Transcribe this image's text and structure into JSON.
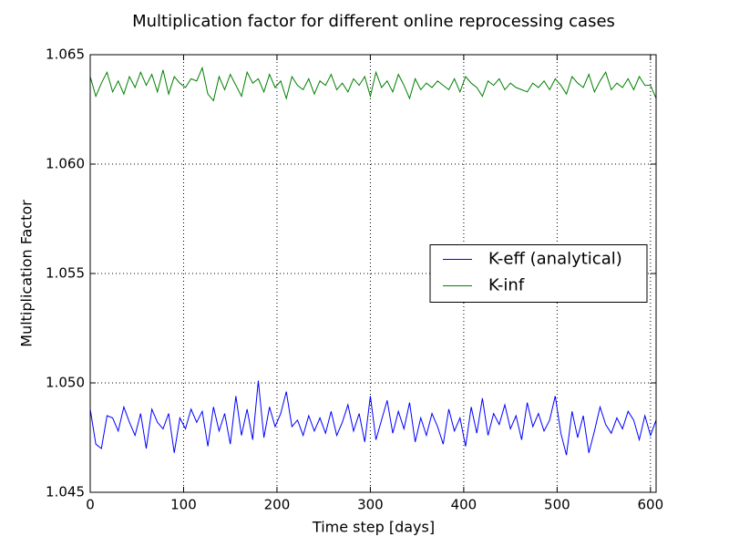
{
  "chart_data": {
    "type": "line",
    "title": "Multiplication factor for different online reprocessing cases",
    "xlabel": "Time step [days]",
    "ylabel": "Multiplication Factor",
    "x": [
      0,
      6,
      12,
      18,
      24,
      30,
      36,
      42,
      48,
      54,
      60,
      66,
      72,
      78,
      84,
      90,
      96,
      102,
      108,
      114,
      120,
      126,
      132,
      138,
      144,
      150,
      156,
      162,
      168,
      174,
      180,
      186,
      192,
      198,
      204,
      210,
      216,
      222,
      228,
      234,
      240,
      246,
      252,
      258,
      264,
      270,
      276,
      282,
      288,
      294,
      300,
      306,
      312,
      318,
      324,
      330,
      336,
      342,
      348,
      354,
      360,
      366,
      372,
      378,
      384,
      390,
      396,
      402,
      408,
      414,
      420,
      426,
      432,
      438,
      444,
      450,
      456,
      462,
      468,
      474,
      480,
      486,
      492,
      498,
      504,
      510,
      516,
      522,
      528,
      534,
      540,
      546,
      552,
      558,
      564,
      570,
      576,
      582,
      588,
      594,
      600,
      606
    ],
    "series": [
      {
        "name": "K-eff (analytical)",
        "color": "#0000ff",
        "values": [
          1.0488,
          1.0472,
          1.047,
          1.0485,
          1.0484,
          1.0478,
          1.0489,
          1.0482,
          1.0476,
          1.0486,
          1.047,
          1.0488,
          1.0482,
          1.0479,
          1.0486,
          1.0468,
          1.0484,
          1.0479,
          1.0488,
          1.0482,
          1.0487,
          1.0471,
          1.0489,
          1.0478,
          1.0486,
          1.0472,
          1.0494,
          1.0476,
          1.0488,
          1.0474,
          1.0501,
          1.0475,
          1.0489,
          1.048,
          1.0486,
          1.0496,
          1.048,
          1.0483,
          1.0476,
          1.0485,
          1.0478,
          1.0484,
          1.0477,
          1.0487,
          1.0476,
          1.0482,
          1.049,
          1.0478,
          1.0486,
          1.0473,
          1.0494,
          1.0474,
          1.0483,
          1.0492,
          1.0477,
          1.0487,
          1.0479,
          1.0491,
          1.0473,
          1.0484,
          1.0476,
          1.0486,
          1.048,
          1.0472,
          1.0488,
          1.0478,
          1.0484,
          1.0471,
          1.0489,
          1.0477,
          1.0493,
          1.0476,
          1.0486,
          1.0481,
          1.049,
          1.0479,
          1.0485,
          1.0474,
          1.0491,
          1.048,
          1.0486,
          1.0478,
          1.0483,
          1.0494,
          1.0477,
          1.0467,
          1.0487,
          1.0475,
          1.0485,
          1.0468,
          1.0478,
          1.0489,
          1.0481,
          1.0477,
          1.0484,
          1.0479,
          1.0487,
          1.0483,
          1.0474,
          1.0485,
          1.0476,
          1.0483
        ]
      },
      {
        "name": "K-inf",
        "color": "#008000",
        "values": [
          1.064,
          1.0631,
          1.0637,
          1.0642,
          1.0633,
          1.0638,
          1.0632,
          1.064,
          1.0635,
          1.0642,
          1.0636,
          1.0641,
          1.0633,
          1.0643,
          1.0632,
          1.064,
          1.0637,
          1.0635,
          1.0639,
          1.0638,
          1.0644,
          1.0632,
          1.0629,
          1.064,
          1.0634,
          1.0641,
          1.0636,
          1.0631,
          1.0642,
          1.0637,
          1.0639,
          1.0633,
          1.0641,
          1.0635,
          1.0638,
          1.063,
          1.064,
          1.0636,
          1.0634,
          1.0639,
          1.0632,
          1.0638,
          1.0636,
          1.0641,
          1.0634,
          1.0637,
          1.0633,
          1.0639,
          1.0636,
          1.064,
          1.0631,
          1.0642,
          1.0635,
          1.0638,
          1.0633,
          1.0641,
          1.0636,
          1.063,
          1.0639,
          1.0634,
          1.0637,
          1.0635,
          1.0638,
          1.0636,
          1.0634,
          1.0639,
          1.0633,
          1.064,
          1.0637,
          1.0635,
          1.0631,
          1.0638,
          1.0636,
          1.0639,
          1.0634,
          1.0637,
          1.0635,
          1.0634,
          1.0633,
          1.0637,
          1.0635,
          1.0638,
          1.0634,
          1.0639,
          1.0636,
          1.0632,
          1.064,
          1.0637,
          1.0635,
          1.0641,
          1.0633,
          1.0638,
          1.0642,
          1.0634,
          1.0637,
          1.0635,
          1.0639,
          1.0634,
          1.064,
          1.0636,
          1.0636,
          1.063
        ]
      }
    ],
    "xlim": [
      0,
      606
    ],
    "ylim": [
      1.045,
      1.065
    ],
    "xticks": [
      0,
      100,
      200,
      300,
      400,
      500,
      600
    ],
    "yticks": [
      1.045,
      {
        "value": 1.05,
        "label": "1.050"
      },
      1.055,
      {
        "value": 1.06,
        "label": "1.060"
      },
      1.065
    ],
    "grid": true,
    "legend": "center right"
  }
}
